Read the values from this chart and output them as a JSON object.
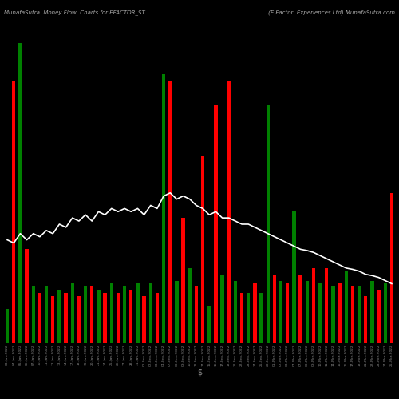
{
  "title_left": "MunafaSutra  Money Flow  Charts for EFACTOR_ST",
  "title_right": "(E Factor  Experiences Ltd) MunafaSutra.com",
  "xlabel": "$",
  "background_color": "#000000",
  "bar_colors": [
    "green",
    "red",
    "green",
    "red",
    "green",
    "red",
    "green",
    "red",
    "green",
    "red",
    "green",
    "red",
    "green",
    "red",
    "green",
    "red",
    "green",
    "red",
    "green",
    "red",
    "green",
    "red",
    "green",
    "red",
    "green",
    "red",
    "green",
    "red",
    "green",
    "red",
    "red",
    "green",
    "red",
    "green",
    "red",
    "green",
    "red",
    "green",
    "red",
    "green",
    "green",
    "red",
    "green",
    "red",
    "green",
    "red",
    "green",
    "red",
    "green",
    "red",
    "green",
    "red",
    "green",
    "red",
    "green",
    "red",
    "green",
    "red",
    "green",
    "red"
  ],
  "bar_heights": [
    55,
    420,
    480,
    150,
    90,
    80,
    90,
    75,
    85,
    80,
    95,
    75,
    90,
    90,
    85,
    80,
    95,
    80,
    90,
    85,
    95,
    75,
    95,
    80,
    430,
    420,
    100,
    200,
    120,
    90,
    300,
    60,
    380,
    110,
    420,
    100,
    80,
    80,
    95,
    80,
    380,
    110,
    100,
    95,
    210,
    110,
    100,
    120,
    95,
    120,
    90,
    95,
    115,
    90,
    90,
    75,
    100,
    85,
    95,
    240
  ],
  "line_values": [
    165,
    160,
    175,
    165,
    175,
    170,
    180,
    175,
    190,
    185,
    200,
    195,
    205,
    195,
    210,
    205,
    215,
    210,
    215,
    210,
    215,
    205,
    220,
    215,
    235,
    240,
    230,
    235,
    230,
    220,
    215,
    205,
    210,
    200,
    200,
    195,
    190,
    190,
    185,
    180,
    175,
    170,
    165,
    160,
    155,
    150,
    148,
    145,
    140,
    135,
    130,
    125,
    120,
    118,
    115,
    110,
    108,
    105,
    100,
    95
  ],
  "x_labels": [
    "03-Jan-2022",
    "04-Jan-2022",
    "05-Jan-2022",
    "06-Jan-2022",
    "07-Jan-2022",
    "10-Jan-2022",
    "11-Jan-2022",
    "12-Jan-2022",
    "13-Jan-2022",
    "14-Jan-2022",
    "17-Jan-2022",
    "18-Jan-2022",
    "19-Jan-2022",
    "20-Jan-2022",
    "21-Jan-2022",
    "24-Jan-2022",
    "25-Jan-2022",
    "26-Jan-2022",
    "27-Jan-2022",
    "28-Jan-2022",
    "31-Jan-2022",
    "01-Feb-2022",
    "02-Feb-2022",
    "03-Feb-2022",
    "04-Feb-2022",
    "07-Feb-2022",
    "08-Feb-2022",
    "09-Feb-2022",
    "10-Feb-2022",
    "11-Feb-2022",
    "14-Feb-2022",
    "15-Feb-2022",
    "16-Feb-2022",
    "17-Feb-2022",
    "18-Feb-2022",
    "21-Feb-2022",
    "22-Feb-2022",
    "23-Feb-2022",
    "24-Feb-2022",
    "25-Feb-2022",
    "28-Feb-2022",
    "01-Mar-2022",
    "02-Mar-2022",
    "03-Mar-2022",
    "04-Mar-2022",
    "07-Mar-2022",
    "08-Mar-2022",
    "09-Mar-2022",
    "10-Mar-2022",
    "11-Mar-2022",
    "14-Mar-2022",
    "15-Mar-2022",
    "16-Mar-2022",
    "17-Mar-2022",
    "18-Mar-2022",
    "21-Mar-2022",
    "22-Mar-2022",
    "23-Mar-2022",
    "24-Mar-2022",
    "25-Mar-2022"
  ]
}
